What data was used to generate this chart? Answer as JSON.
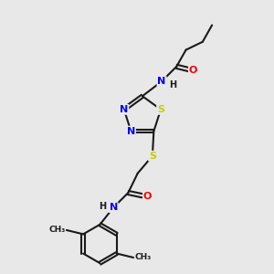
{
  "background_color": "#e8e8e8",
  "bond_color": "#1a1a1a",
  "N_color": "#0000ff",
  "O_color": "#ff0000",
  "S_color": "#cccc00",
  "H_color": "#1a1a1a",
  "figsize": [
    3.0,
    3.0
  ],
  "dpi": 100,
  "xlim": [
    0,
    10
  ],
  "ylim": [
    0,
    10
  ]
}
